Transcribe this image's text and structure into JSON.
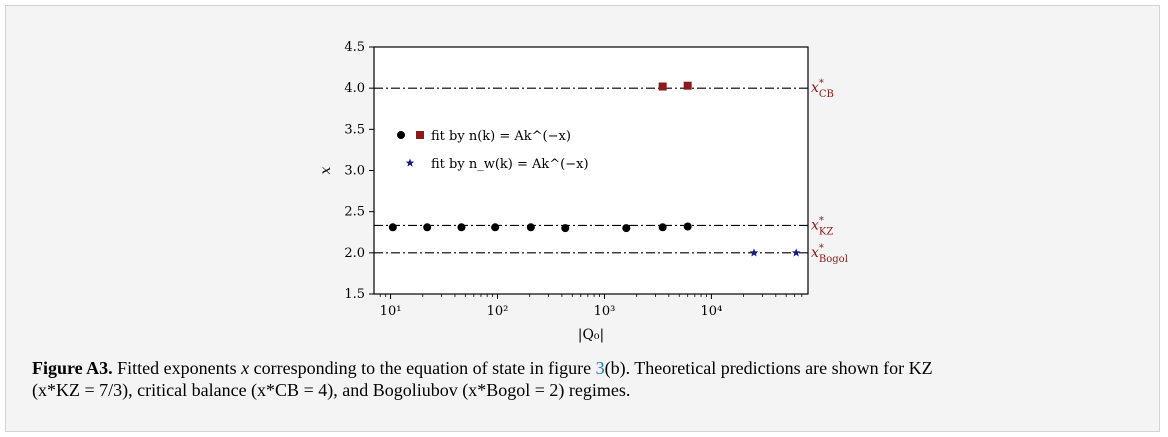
{
  "chart_data": {
    "type": "scatter",
    "xscale": "log",
    "xlim": [
      7,
      80000
    ],
    "ylim": [
      1.5,
      4.5
    ],
    "xlabel": "|Q₀|",
    "ylabel": "x",
    "x_ticks": [
      {
        "value": 10,
        "label": "10¹"
      },
      {
        "value": 100,
        "label": "10²"
      },
      {
        "value": 1000,
        "label": "10³"
      },
      {
        "value": 10000,
        "label": "10⁴"
      }
    ],
    "y_ticks": [
      1.5,
      2.0,
      2.5,
      3.0,
      3.5,
      4.0,
      4.5
    ],
    "grid": false,
    "legend_position": "middle-left",
    "series": [
      {
        "name": "fit by n(k) = Ak^(−x)",
        "marker": "circle",
        "color": "#000000",
        "points": [
          [
            10.5,
            2.31
          ],
          [
            22,
            2.31
          ],
          [
            46,
            2.31
          ],
          [
            95,
            2.31
          ],
          [
            205,
            2.31
          ],
          [
            430,
            2.3
          ],
          [
            1600,
            2.3
          ],
          [
            3500,
            2.31
          ],
          [
            6000,
            2.32
          ]
        ]
      },
      {
        "name": "fit by n(k) = Ak^(−x)",
        "marker": "square",
        "color": "#8b1a1a",
        "points": [
          [
            3500,
            4.02
          ],
          [
            6000,
            4.03
          ]
        ]
      },
      {
        "name": "fit by n_w(k) = Ak^(−x)",
        "marker": "star",
        "color": "#1a1a8b",
        "points": [
          [
            25000,
            2.0
          ],
          [
            62000,
            2.0
          ]
        ]
      }
    ],
    "reference_lines": [
      {
        "y": 4.0,
        "label": "x*CB",
        "color": "#8b1a1a"
      },
      {
        "y": 2.333,
        "label": "x*KZ",
        "color": "#8b1a1a"
      },
      {
        "y": 2.0,
        "label": "x*Bogol",
        "color": "#8b1a1a"
      }
    ],
    "legend": [
      {
        "label": "fit by n(k) = Ak^(−x)"
      },
      {
        "label": "fit by n_w(k) = Ak^(−x)"
      }
    ]
  },
  "caption": {
    "label": "Figure A3.",
    "text_1": " Fitted exponents ",
    "var_x": "x",
    "text_2": " corresponding to the equation of state in figure ",
    "ref": "3",
    "text_3": "(b). Theoretical predictions are shown for KZ",
    "line2": "(x*KZ = 7/3), critical balance (x*CB = 4), and Bogoliubov (x*Bogol = 2) regimes."
  }
}
